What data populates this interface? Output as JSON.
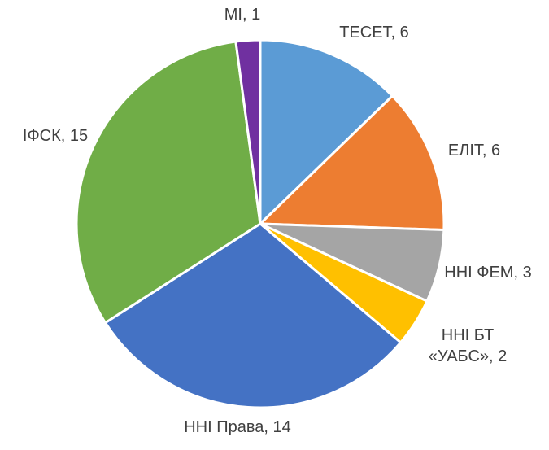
{
  "chart_data": {
    "type": "pie",
    "values": [
      6,
      6,
      3,
      2,
      14,
      15,
      1
    ],
    "value_labels": [
      "ТЕСЕТ, 6",
      "ЕЛІТ, 6",
      "ННІ ФЕМ, 3",
      "ННІ БТ «УАБС», 2",
      "ННІ Права, 14",
      "ІФСК, 15",
      "МІ, 1"
    ],
    "colors": [
      "#5b9bd5",
      "#ed7d31",
      "#a5a5a5",
      "#ffc000",
      "#4472c4",
      "#70ad47",
      "#7030a0"
    ]
  }
}
